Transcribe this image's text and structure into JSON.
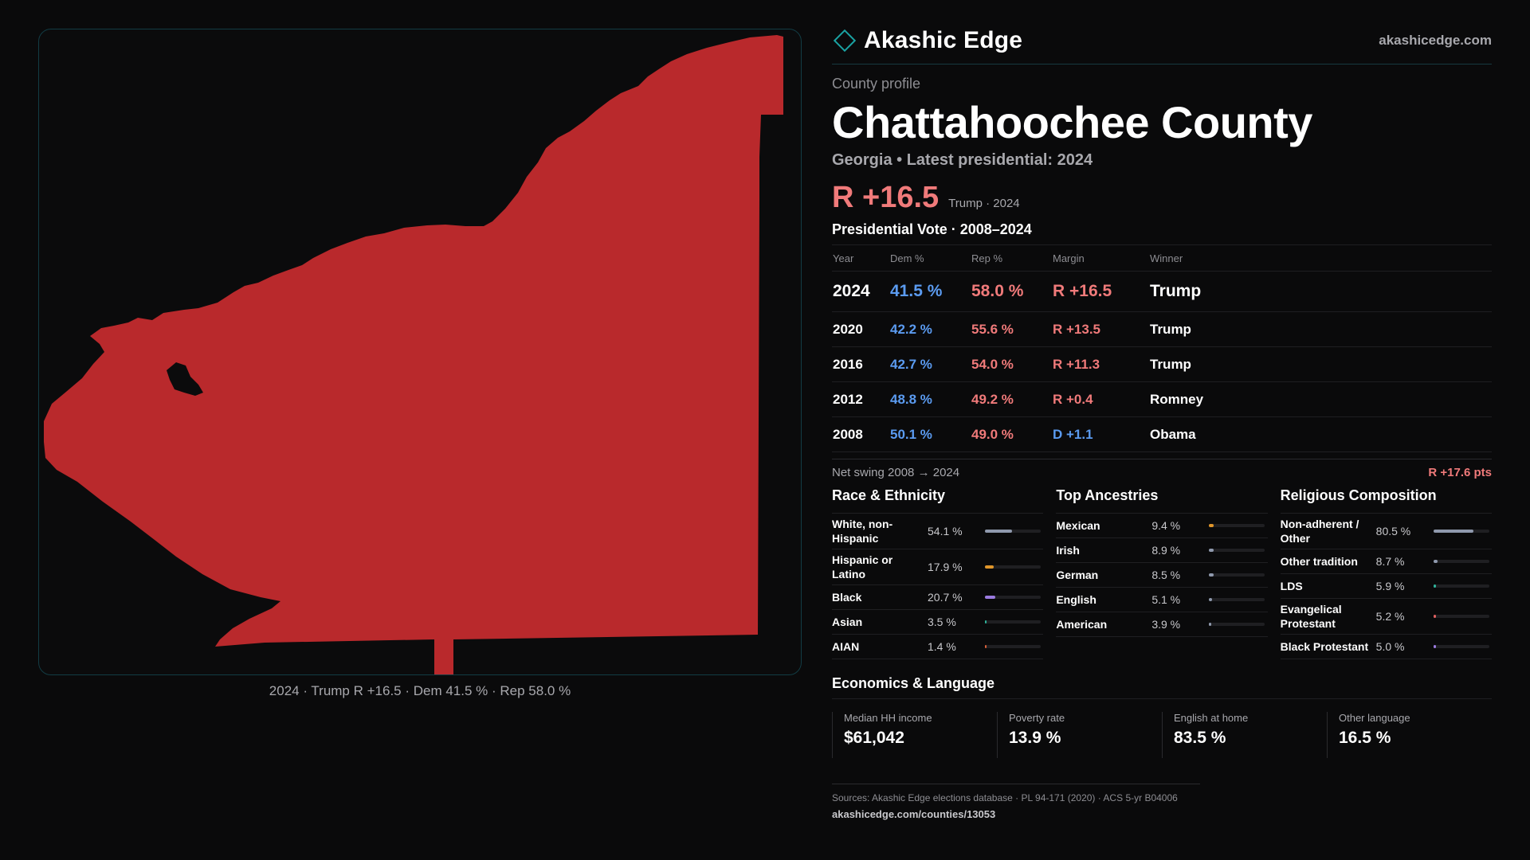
{
  "map": {
    "caption": "2024 · Trump R +16.5 · Dem 41.5 % · Rep 58.0 %",
    "fill_color": "#b9292c"
  },
  "brand": {
    "name": "Akashic Edge",
    "site": "akashicedge.com",
    "icon": "diamond-outline-icon",
    "accent": "#1aa3a3"
  },
  "profile": {
    "eyebrow": "County profile",
    "title": "Chattahoochee County",
    "subtitle": "Georgia • Latest presidential: 2024",
    "margin": "R +16.5",
    "margin_note": "Trump · 2024"
  },
  "vote": {
    "title": "Presidential Vote · 2008–2024",
    "headers": {
      "year": "Year",
      "dem": "Dem %",
      "rep": "Rep %",
      "margin": "Margin",
      "winner": "Winner"
    },
    "rows": [
      {
        "year": "2024",
        "dem": "41.5 %",
        "rep": "58.0 %",
        "margin": "R +16.5",
        "party": "rep",
        "winner": "Trump"
      },
      {
        "year": "2020",
        "dem": "42.2 %",
        "rep": "55.6 %",
        "margin": "R +13.5",
        "party": "rep",
        "winner": "Trump"
      },
      {
        "year": "2016",
        "dem": "42.7 %",
        "rep": "54.0 %",
        "margin": "R +11.3",
        "party": "rep",
        "winner": "Trump"
      },
      {
        "year": "2012",
        "dem": "48.8 %",
        "rep": "49.2 %",
        "margin": "R +0.4",
        "party": "rep",
        "winner": "Romney"
      },
      {
        "year": "2008",
        "dem": "50.1 %",
        "rep": "49.0 %",
        "margin": "D +1.1",
        "party": "dem",
        "winner": "Obama"
      }
    ],
    "swing_label": "Net swing 2008 → 2024",
    "swing_value": "R +17.6 pts"
  },
  "race": {
    "title": "Race & Ethnicity",
    "items": [
      {
        "label": "White, non-Hispanic",
        "value": "54.1 %",
        "pct": 54.1,
        "color": "#8f99ad"
      },
      {
        "label": "Hispanic or Latino",
        "value": "17.9 %",
        "pct": 17.9,
        "color": "#e0962a"
      },
      {
        "label": "Black",
        "value": "20.7 %",
        "pct": 20.7,
        "color": "#9b7be0"
      },
      {
        "label": "Asian",
        "value": "3.5 %",
        "pct": 3.5,
        "color": "#2fb39a"
      },
      {
        "label": "AIAN",
        "value": "1.4 %",
        "pct": 1.4,
        "color": "#d9603a"
      }
    ]
  },
  "ancestry": {
    "title": "Top Ancestries",
    "items": [
      {
        "label": "Mexican",
        "value": "9.4 %",
        "pct": 9.4,
        "color": "#e0962a"
      },
      {
        "label": "Irish",
        "value": "8.9 %",
        "pct": 8.9,
        "color": "#8f99ad"
      },
      {
        "label": "German",
        "value": "8.5 %",
        "pct": 8.5,
        "color": "#8f99ad"
      },
      {
        "label": "English",
        "value": "5.1 %",
        "pct": 5.1,
        "color": "#8f99ad"
      },
      {
        "label": "American",
        "value": "3.9 %",
        "pct": 3.9,
        "color": "#8f99ad"
      }
    ]
  },
  "religion": {
    "title": "Religious Composition",
    "items": [
      {
        "label": "Non-adherent / Other",
        "value": "80.5 %",
        "pct": 80.5,
        "color": "#8f99ad"
      },
      {
        "label": "Other tradition",
        "value": "8.7 %",
        "pct": 8.7,
        "color": "#8f99ad"
      },
      {
        "label": "LDS",
        "value": "5.9 %",
        "pct": 5.9,
        "color": "#2fb39a"
      },
      {
        "label": "Evangelical Protestant",
        "value": "5.2 %",
        "pct": 5.2,
        "color": "#e06060"
      },
      {
        "label": "Black Protestant",
        "value": "5.0 %",
        "pct": 5.0,
        "color": "#9b7be0"
      }
    ]
  },
  "economics": {
    "title": "Economics & Language",
    "items": [
      {
        "label": "Median HH income",
        "value": "$61,042"
      },
      {
        "label": "Poverty rate",
        "value": "13.9 %"
      },
      {
        "label": "English at home",
        "value": "83.5 %"
      },
      {
        "label": "Other language",
        "value": "16.5 %"
      }
    ]
  },
  "footer": {
    "sources": "Sources: Akashic Edge elections database · PL 94-171 (2020) · ACS 5-yr B04006",
    "url": "akashicedge.com/counties/13053"
  }
}
